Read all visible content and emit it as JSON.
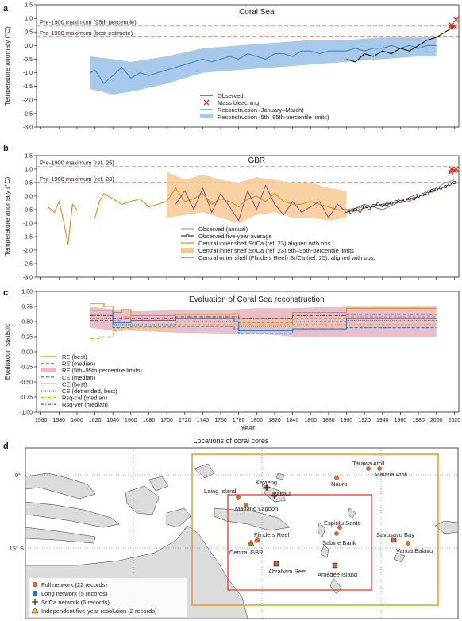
{
  "panels": {
    "a": {
      "letter": "a",
      "title": "Coral Sea",
      "ylabel": "Temperature anomaly (°C)",
      "pre_lines": [
        "Pre-1900 maximum (95th percentile)",
        "Pre-1900 maximum (best estimate)"
      ],
      "legend": [
        "Observed",
        "Mass bleaching",
        "Reconstruction (January–March)",
        "Reconstruction (5th–95th-percentile limits)"
      ]
    },
    "b": {
      "letter": "b",
      "title": "GBR",
      "ylabel": "Temperature anomaly (°C)",
      "pre_lines": [
        "Pre-1900 maximum (ref. 25)",
        "Pre-1900 maximum (ref. 23)"
      ],
      "legend": [
        "Observed (annual)",
        "Observed five-year average",
        "Central inner shelf Sr/Ca (ref. 23) aligned with obs.",
        "Central inner shelf Sr/Ca (ref. 23) 5th–95th-percentile limits",
        "Central outer shelf (Flinders Reef) Sr/Ca (ref. 25), aligned with obs."
      ]
    },
    "c": {
      "letter": "c",
      "title": "Evaluation of Coral Sea reconstruction",
      "ylabel": "Evaluation statistic",
      "legend": [
        "RE (best)",
        "RE (median)",
        "RE (5th–95th-percentile limits)",
        "CE (median)",
        "CE (best)",
        "CE (detrended, best)",
        "Rsq-cal (median)",
        "Rsq-ver (median)"
      ]
    },
    "d": {
      "letter": "d",
      "title": "Locations of coral cores",
      "lat_labels": [
        "0°",
        "15° S"
      ],
      "legend": [
        "Full network (22 records)",
        "Long network (5 records)",
        "Sr/Ca network (6 records)",
        "Independent five-year resolution (2 records)"
      ],
      "sites": [
        "Tarawa Atoll",
        "Maiana Atoll",
        "Nauru",
        "Kavieng",
        "Laing Island",
        "Rabaul",
        "Madang Lagoon",
        "Espiritu Santo",
        "Sabine Bank",
        "Savusavu Bay",
        "Vanua Balavu",
        "Flinders Reef",
        "Central GBR",
        "Abraham Reef",
        "Amédée Island"
      ]
    }
  },
  "xaxis_label": "Year",
  "colors": {
    "observed": "#000000",
    "recon": "#3b87c9",
    "band": "#a9c9ea",
    "bleach": "#e8251f",
    "preline_dark": "#d62b2b",
    "preline_light": "#f2a3a3",
    "orange": "#e08c1c",
    "orange_band": "#f6c992",
    "purple": "#8a3d94",
    "re_band": "#e7b9c3",
    "ce": "#2f78c2",
    "rsqcal": "#e0b41c",
    "rsqver": "#6b3f8f",
    "map_land": "#dcdcdc",
    "map_box_orange": "#e59a2d",
    "map_box_red": "#e23a3a",
    "site_orange": "#e06a2b",
    "site_blue": "#2f6fb8"
  },
  "chart_data": [
    {
      "type": "line",
      "panel": "a",
      "title": "Coral Sea",
      "xlabel": "Year",
      "ylabel": "Temperature anomaly (°C)",
      "xlim": [
        1555,
        2025
      ],
      "ylim": [
        -3.0,
        1.5
      ],
      "xticks": [
        1560,
        1580,
        1600,
        1620,
        1640,
        1660,
        1680,
        1700,
        1720,
        1740,
        1760,
        1780,
        1800,
        1820,
        1840,
        1860,
        1880,
        1900,
        1920,
        1940,
        1960,
        1980,
        2000,
        2020
      ],
      "yticks": [
        -3.0,
        -2.5,
        -2.0,
        -1.5,
        -1.0,
        -0.5,
        0,
        0.5,
        1.0,
        1.5
      ],
      "reference_lines": [
        {
          "name": "Pre-1900 maximum (95th percentile)",
          "y": 0.72
        },
        {
          "name": "Pre-1900 maximum (best estimate)",
          "y": 0.33
        }
      ],
      "series": [
        {
          "name": "Reconstruction (January–March)",
          "x": [
            1615,
            1620,
            1630,
            1640,
            1650,
            1660,
            1670,
            1680,
            1690,
            1700,
            1710,
            1720,
            1730,
            1740,
            1750,
            1760,
            1770,
            1780,
            1790,
            1800,
            1810,
            1820,
            1830,
            1840,
            1850,
            1860,
            1870,
            1880,
            1890,
            1900,
            1910,
            1920,
            1930,
            1940,
            1950,
            1960,
            1970,
            1980,
            1990,
            2000
          ],
          "y": [
            -1.0,
            -0.9,
            -1.4,
            -1.1,
            -0.8,
            -1.2,
            -1.0,
            -1.1,
            -1.0,
            -0.9,
            -0.8,
            -0.7,
            -0.6,
            -0.5,
            -0.6,
            -0.5,
            -0.4,
            -0.5,
            -0.3,
            -0.4,
            -0.5,
            -0.3,
            -0.3,
            -0.4,
            -0.2,
            -0.2,
            -0.3,
            -0.2,
            -0.2,
            -0.2,
            -0.1,
            -0.2,
            -0.1,
            -0.1,
            0.0,
            -0.1,
            0.0,
            -0.1,
            0.0,
            0.0
          ]
        },
        {
          "name": "Reconstruction (5th–95th-percentile limits)",
          "x": [
            1615,
            1640,
            1660,
            1700,
            1740,
            1780,
            1820,
            1860,
            1900,
            1940,
            1980,
            2000
          ],
          "lower": [
            -1.6,
            -1.8,
            -1.7,
            -1.4,
            -1.0,
            -0.9,
            -0.8,
            -0.7,
            -0.6,
            -0.5,
            -0.4,
            -0.4
          ],
          "upper": [
            -0.4,
            -0.5,
            -0.6,
            -0.4,
            -0.1,
            0.0,
            0.1,
            0.2,
            0.2,
            0.3,
            0.3,
            0.3
          ]
        },
        {
          "name": "Observed",
          "x": [
            1900,
            1910,
            1920,
            1930,
            1940,
            1950,
            1960,
            1970,
            1980,
            1990,
            2000,
            2005,
            2010,
            2015,
            2020
          ],
          "y": [
            -0.5,
            -0.6,
            -0.3,
            -0.4,
            -0.2,
            -0.3,
            -0.1,
            -0.2,
            0.0,
            0.2,
            0.3,
            0.4,
            0.5,
            0.6,
            0.7
          ]
        },
        {
          "name": "Mass bleaching",
          "x": [
            2016,
            2017,
            2020,
            2022
          ],
          "y": [
            0.7,
            0.75,
            0.7,
            0.95
          ]
        }
      ]
    },
    {
      "type": "line",
      "panel": "b",
      "title": "GBR",
      "xlabel": "Year",
      "ylabel": "Temperature anomaly (°C)",
      "xlim": [
        1555,
        2025
      ],
      "ylim": [
        -3.0,
        1.5
      ],
      "xticks": [
        1560,
        1580,
        1600,
        1620,
        1640,
        1660,
        1680,
        1700,
        1720,
        1740,
        1760,
        1780,
        1800,
        1820,
        1840,
        1860,
        1880,
        1900,
        1920,
        1940,
        1960,
        1980,
        2000,
        2020
      ],
      "yticks": [
        -3.0,
        -2.5,
        -2.0,
        -1.5,
        -1.0,
        -0.5,
        0,
        0.5,
        1.0,
        1.5
      ],
      "reference_lines": [
        {
          "name": "Pre-1900 maximum (ref. 25)",
          "y": 1.1
        },
        {
          "name": "Pre-1900 maximum (ref. 23)",
          "y": 0.5
        }
      ],
      "series": [
        {
          "name": "Central inner shelf Sr/Ca (ref. 23) aligned with obs.",
          "x": [
            1568,
            1575,
            1580,
            1585,
            1590,
            1595,
            1600,
            1620,
            1625,
            1630,
            1640,
            1650,
            1660,
            1670,
            1680,
            1690,
            1700,
            1710,
            1720,
            1730,
            1740,
            1750,
            1760,
            1770,
            1780,
            1790,
            1800,
            1810,
            1820,
            1830,
            1840,
            1850,
            1860,
            1870,
            1880,
            1890,
            1900,
            1920,
            1940,
            1960,
            1980,
            2000
          ],
          "y": [
            -0.4,
            -0.6,
            -0.2,
            -0.9,
            -1.8,
            -0.3,
            -0.5,
            -0.8,
            -0.2,
            0.1,
            -0.1,
            -0.3,
            -0.2,
            -0.1,
            -0.4,
            -0.3,
            -0.2,
            0.3,
            -0.2,
            -0.1,
            0.1,
            -0.3,
            -0.1,
            -0.2,
            -0.4,
            -0.1,
            0.0,
            -0.2,
            0.1,
            -0.2,
            -0.3,
            -0.3,
            -0.2,
            -0.3,
            -0.4,
            -0.5,
            -0.5,
            -0.4,
            -0.3,
            -0.2,
            0.0,
            0.2
          ]
        },
        {
          "name": "Central inner shelf Sr/Ca (ref. 23) 5th–95th-percentile limits",
          "x": [
            1700,
            1720,
            1740,
            1760,
            1780,
            1800,
            1820,
            1840,
            1860,
            1880,
            1900
          ],
          "lower": [
            -0.8,
            -0.7,
            -0.6,
            -0.8,
            -1.0,
            -0.7,
            -0.6,
            -0.8,
            -0.8,
            -0.9,
            -0.8
          ],
          "upper": [
            0.9,
            0.6,
            0.8,
            0.6,
            0.5,
            0.7,
            0.6,
            0.5,
            0.5,
            0.3,
            0.2
          ]
        },
        {
          "name": "Central outer shelf (Flinders Reef) Sr/Ca (ref. 25), aligned with obs.",
          "x": [
            1710,
            1720,
            1730,
            1740,
            1750,
            1760,
            1770,
            1780,
            1790,
            1800,
            1810,
            1820,
            1830,
            1840,
            1850,
            1860,
            1870,
            1880,
            1890,
            1900,
            1920,
            1940,
            1960,
            1980
          ],
          "y": [
            -0.3,
            0.2,
            -0.5,
            0.3,
            -0.6,
            0.1,
            -0.4,
            -0.9,
            0.2,
            -0.5,
            0.4,
            -0.3,
            -0.7,
            -0.2,
            -0.6,
            -0.4,
            -0.2,
            -0.8,
            -0.3,
            -0.6,
            -0.3,
            -0.5,
            -0.2,
            0.1
          ]
        },
        {
          "name": "Observed (annual)",
          "x": [
            1900,
            1910,
            1920,
            1930,
            1940,
            1950,
            1960,
            1970,
            1980,
            1990,
            2000,
            2010,
            2020
          ],
          "y": [
            -0.5,
            -0.6,
            -0.3,
            -0.4,
            -0.3,
            -0.3,
            -0.1,
            -0.2,
            0.0,
            0.2,
            0.3,
            0.5,
            0.6
          ]
        },
        {
          "name": "Observed five-year average",
          "x": [
            1900,
            1905,
            1910,
            1915,
            1920,
            1925,
            1930,
            1935,
            1940,
            1945,
            1950,
            1955,
            1960,
            1965,
            1970,
            1975,
            1980,
            1985,
            1990,
            1995,
            2000,
            2005,
            2010,
            2015,
            2020
          ],
          "y": [
            -0.55,
            -0.6,
            -0.5,
            -0.55,
            -0.4,
            -0.45,
            -0.35,
            -0.3,
            -0.35,
            -0.3,
            -0.25,
            -0.2,
            -0.2,
            -0.15,
            -0.1,
            -0.1,
            0.0,
            0.05,
            0.1,
            0.2,
            0.25,
            0.3,
            0.35,
            0.45,
            0.5
          ]
        },
        {
          "name": "Mass bleaching",
          "x": [
            2016,
            2017,
            2020,
            2022
          ],
          "y": [
            0.9,
            1.0,
            0.95,
            1.0
          ]
        }
      ]
    },
    {
      "type": "line",
      "panel": "c",
      "title": "Evaluation of Coral Sea reconstruction",
      "xlabel": "Year",
      "ylabel": "Evaluation statistic",
      "xlim": [
        1555,
        2025
      ],
      "ylim": [
        -1.0,
        1.0
      ],
      "xticks": [
        1560,
        1580,
        1600,
        1620,
        1640,
        1660,
        1680,
        1700,
        1720,
        1740,
        1760,
        1780,
        1800,
        1820,
        1840,
        1860,
        1880,
        1900,
        1920,
        1940,
        1960,
        1980,
        2000,
        2020
      ],
      "yticks": [
        -1.0,
        -0.75,
        -0.5,
        -0.25,
        0,
        0.25,
        0.5,
        0.75,
        1.0
      ],
      "series": [
        {
          "name": "RE (best)",
          "x": [
            1615,
            1630,
            1640,
            1650,
            1660,
            1710,
            1775,
            1780,
            1840,
            1900,
            2000
          ],
          "y": [
            0.8,
            0.75,
            0.65,
            0.7,
            0.6,
            0.62,
            0.63,
            0.55,
            0.65,
            0.72,
            0.72
          ]
        },
        {
          "name": "RE (median)",
          "x": [
            1615,
            1630,
            1640,
            1650,
            1660,
            1710,
            1775,
            1780,
            1840,
            1900,
            2000
          ],
          "y": [
            0.62,
            0.6,
            0.52,
            0.58,
            0.52,
            0.55,
            0.55,
            0.48,
            0.55,
            0.58,
            0.58
          ]
        },
        {
          "name": "RE (5th–95th-percentile limits)",
          "x": [
            1615,
            1640,
            1660,
            1710,
            1775,
            1800,
            1840,
            1900,
            2000
          ],
          "lower": [
            0.4,
            0.35,
            0.35,
            0.32,
            0.3,
            0.3,
            0.25,
            0.25,
            0.25
          ],
          "upper": [
            0.75,
            0.7,
            0.68,
            0.7,
            0.7,
            0.72,
            0.72,
            0.76,
            0.76
          ]
        },
        {
          "name": "CE (median)",
          "x": [
            1615,
            1640,
            1660,
            1710,
            1775,
            1780,
            1840,
            1900,
            2000
          ],
          "y": [
            0.52,
            0.4,
            0.42,
            0.42,
            0.38,
            0.3,
            0.36,
            0.4,
            0.4
          ]
        },
        {
          "name": "CE (best)",
          "x": [
            1615,
            1640,
            1660,
            1710,
            1775,
            1780,
            1840,
            1900,
            2000
          ],
          "y": [
            0.68,
            0.48,
            0.52,
            0.55,
            0.5,
            0.35,
            0.38,
            0.55,
            0.55
          ]
        },
        {
          "name": "CE (detrended, best)",
          "x": [
            1615,
            1640,
            1660,
            1710,
            1775,
            1780,
            1840,
            1900,
            2000
          ],
          "y": [
            0.55,
            0.45,
            0.45,
            0.5,
            0.5,
            0.42,
            0.5,
            0.52,
            0.52
          ]
        },
        {
          "name": "Rsq-cal (median)",
          "x": [
            1615,
            1625,
            1640,
            1650,
            1710,
            2000
          ],
          "y": [
            0.22,
            0.25,
            0.35,
            0.4,
            0.45,
            0.45
          ]
        },
        {
          "name": "Rsq-ver (median)",
          "x": [
            1615,
            1640,
            1660,
            1710,
            1780,
            1840,
            1900,
            2000
          ],
          "y": [
            0.6,
            0.55,
            0.55,
            0.58,
            0.55,
            0.6,
            0.62,
            0.62
          ]
        }
      ]
    }
  ]
}
